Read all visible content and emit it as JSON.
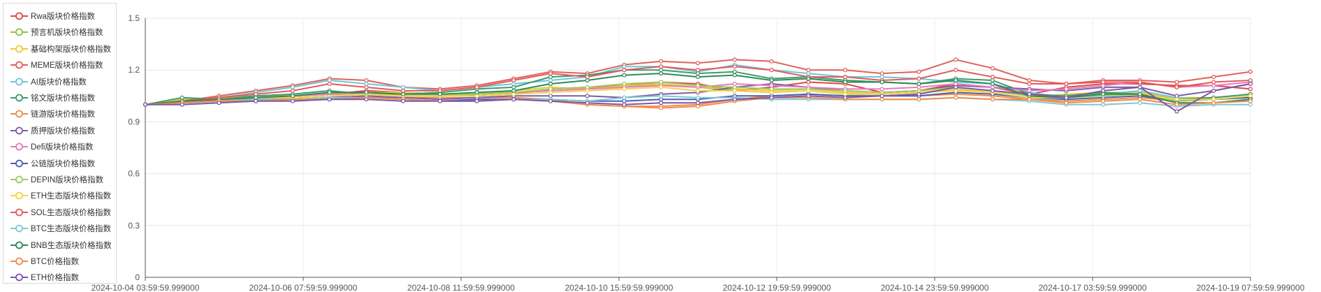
{
  "chart_data": {
    "type": "line",
    "title": "",
    "xlabel": "",
    "ylabel": "",
    "ylim": [
      0,
      1.5
    ],
    "yticks": [
      0,
      0.3,
      0.6,
      0.9,
      1.2,
      1.5
    ],
    "grid": true,
    "legend_position": "left",
    "x_tick_labels": [
      "2024-10-04 03:59:59.999000",
      "2024-10-06 07:59:59.999000",
      "2024-10-08 11:59:59.999000",
      "2024-10-10 15:59:59.999000",
      "2024-10-12 19:59:59.999000",
      "2024-10-14 23:59:59.999000",
      "2024-10-17 03:59:59.999000",
      "2024-10-19 07:59:59.999000"
    ],
    "x_range": [
      "2024-10-04 03:59:59.999000",
      "2024-10-19 07:59:59.999000"
    ],
    "series": [
      {
        "name": "Rwa版块价格指数",
        "color": "#e0474c",
        "values": [
          1.0,
          1.01,
          1.03,
          1.04,
          1.05,
          1.06,
          1.08,
          1.07,
          1.06,
          1.05,
          1.06,
          1.09,
          1.1,
          1.11,
          1.13,
          1.12,
          1.08,
          1.1,
          1.13,
          1.12,
          1.07,
          1.08,
          1.12,
          1.1,
          1.06,
          1.1,
          1.12,
          1.12,
          1.11,
          1.11,
          1.09
        ]
      },
      {
        "name": "预言机版块价格指数",
        "color": "#8bc34a",
        "values": [
          1.0,
          1.02,
          1.03,
          1.03,
          1.04,
          1.05,
          1.06,
          1.05,
          1.05,
          1.06,
          1.07,
          1.08,
          1.09,
          1.1,
          1.12,
          1.1,
          1.08,
          1.07,
          1.08,
          1.06,
          1.06,
          1.07,
          1.09,
          1.07,
          1.04,
          1.05,
          1.06,
          1.07,
          1.03,
          1.03,
          1.04
        ]
      },
      {
        "name": "基础构架版块价格指数",
        "color": "#f0c93c",
        "values": [
          1.0,
          1.03,
          1.04,
          1.05,
          1.05,
          1.06,
          1.07,
          1.07,
          1.06,
          1.06,
          1.08,
          1.1,
          1.09,
          1.11,
          1.12,
          1.1,
          1.09,
          1.08,
          1.09,
          1.07,
          1.06,
          1.07,
          1.09,
          1.07,
          1.04,
          1.06,
          1.07,
          1.07,
          1.04,
          1.04,
          1.06
        ]
      },
      {
        "name": "MEME版块价格指数",
        "color": "#e0615d",
        "values": [
          1.0,
          1.02,
          1.05,
          1.08,
          1.11,
          1.15,
          1.14,
          1.1,
          1.09,
          1.11,
          1.15,
          1.19,
          1.18,
          1.23,
          1.25,
          1.24,
          1.26,
          1.25,
          1.2,
          1.2,
          1.18,
          1.19,
          1.26,
          1.21,
          1.14,
          1.12,
          1.14,
          1.14,
          1.13,
          1.16,
          1.19
        ]
      },
      {
        "name": "AI版块价格指数",
        "color": "#6ec6d9",
        "values": [
          1.0,
          1.02,
          1.04,
          1.07,
          1.1,
          1.14,
          1.12,
          1.1,
          1.08,
          1.1,
          1.12,
          1.14,
          1.16,
          1.22,
          1.22,
          1.19,
          1.23,
          1.2,
          1.18,
          1.16,
          1.16,
          1.15,
          1.13,
          1.12,
          1.07,
          1.04,
          1.06,
          1.08,
          1.04,
          1.03,
          1.05
        ]
      },
      {
        "name": "铭文版块价格指数",
        "color": "#3a9c6e",
        "values": [
          1.0,
          1.04,
          1.03,
          1.05,
          1.06,
          1.08,
          1.06,
          1.06,
          1.07,
          1.09,
          1.1,
          1.16,
          1.17,
          1.2,
          1.2,
          1.18,
          1.19,
          1.15,
          1.16,
          1.14,
          1.13,
          1.12,
          1.15,
          1.14,
          1.06,
          1.05,
          1.07,
          1.06,
          1.03,
          1.04,
          1.06
        ]
      },
      {
        "name": "链游版块价格指数",
        "color": "#ef8c4b",
        "values": [
          1.0,
          1.02,
          1.03,
          1.03,
          1.04,
          1.05,
          1.04,
          1.04,
          1.04,
          1.04,
          1.04,
          1.03,
          1.0,
          0.99,
          0.99,
          1.0,
          1.03,
          1.05,
          1.06,
          1.05,
          1.05,
          1.05,
          1.06,
          1.05,
          1.03,
          1.02,
          1.03,
          1.04,
          1.02,
          1.03,
          1.05
        ]
      },
      {
        "name": "质押版块价格指数",
        "color": "#7b5ea7",
        "values": [
          1.0,
          1.01,
          1.02,
          1.03,
          1.03,
          1.04,
          1.05,
          1.04,
          1.03,
          1.04,
          1.05,
          1.05,
          1.05,
          1.04,
          1.06,
          1.07,
          1.1,
          1.12,
          1.1,
          1.08,
          1.07,
          1.08,
          1.11,
          1.1,
          1.09,
          1.08,
          1.1,
          1.1,
          1.05,
          1.08,
          1.12
        ]
      },
      {
        "name": "Defi版块价格指数",
        "color": "#e87bbf",
        "values": [
          1.0,
          1.02,
          1.03,
          1.04,
          1.05,
          1.06,
          1.06,
          1.05,
          1.05,
          1.06,
          1.07,
          1.08,
          1.09,
          1.1,
          1.11,
          1.1,
          1.12,
          1.11,
          1.1,
          1.09,
          1.09,
          1.1,
          1.12,
          1.1,
          1.08,
          1.09,
          1.11,
          1.13,
          1.1,
          1.11,
          1.13
        ]
      },
      {
        "name": "公链版块价格指数",
        "color": "#4c5fb3",
        "values": [
          1.0,
          1.01,
          1.02,
          1.02,
          1.03,
          1.03,
          1.04,
          1.03,
          1.02,
          1.03,
          1.03,
          1.03,
          1.02,
          1.02,
          1.03,
          1.03,
          1.05,
          1.05,
          1.06,
          1.05,
          1.05,
          1.05,
          1.07,
          1.06,
          1.04,
          1.03,
          1.04,
          1.05,
          1.02,
          1.03,
          1.04
        ]
      },
      {
        "name": "DEPIN版块价格指数",
        "color": "#9ccc65",
        "values": [
          1.0,
          1.02,
          1.03,
          1.04,
          1.04,
          1.05,
          1.06,
          1.05,
          1.05,
          1.06,
          1.07,
          1.09,
          1.1,
          1.12,
          1.13,
          1.11,
          1.1,
          1.09,
          1.09,
          1.08,
          1.07,
          1.08,
          1.1,
          1.08,
          1.05,
          1.04,
          1.05,
          1.06,
          1.02,
          1.03,
          1.05
        ]
      },
      {
        "name": "ETH生态版块价格指数",
        "color": "#f5d24b",
        "values": [
          1.0,
          1.02,
          1.03,
          1.04,
          1.04,
          1.05,
          1.06,
          1.05,
          1.05,
          1.05,
          1.06,
          1.07,
          1.08,
          1.09,
          1.1,
          1.08,
          1.08,
          1.07,
          1.08,
          1.06,
          1.06,
          1.07,
          1.08,
          1.07,
          1.04,
          1.04,
          1.06,
          1.06,
          1.03,
          1.03,
          1.05
        ]
      },
      {
        "name": "SOL生态版块价格指数",
        "color": "#e45a5a",
        "values": [
          1.0,
          1.02,
          1.04,
          1.06,
          1.08,
          1.12,
          1.1,
          1.08,
          1.08,
          1.1,
          1.14,
          1.18,
          1.16,
          1.2,
          1.22,
          1.2,
          1.22,
          1.2,
          1.16,
          1.16,
          1.14,
          1.15,
          1.2,
          1.16,
          1.12,
          1.12,
          1.13,
          1.13,
          1.1,
          1.13,
          1.14
        ]
      },
      {
        "name": "BTC生态版块价格指数",
        "color": "#7fc8d6",
        "values": [
          1.0,
          1.01,
          1.02,
          1.03,
          1.03,
          1.04,
          1.04,
          1.03,
          1.02,
          1.02,
          1.03,
          1.03,
          1.02,
          1.04,
          1.05,
          1.04,
          1.04,
          1.03,
          1.03,
          1.03,
          1.03,
          1.03,
          1.04,
          1.03,
          1.02,
          1.0,
          1.0,
          1.01,
          0.99,
          1.0,
          1.0
        ]
      },
      {
        "name": "BNB生态版块价格指数",
        "color": "#2f8a57",
        "values": [
          1.0,
          1.02,
          1.03,
          1.04,
          1.05,
          1.07,
          1.07,
          1.06,
          1.06,
          1.07,
          1.08,
          1.12,
          1.14,
          1.17,
          1.18,
          1.16,
          1.17,
          1.14,
          1.15,
          1.13,
          1.13,
          1.12,
          1.14,
          1.12,
          1.05,
          1.04,
          1.06,
          1.06,
          1.01,
          1.01,
          1.03
        ]
      },
      {
        "name": "BTC价格指数",
        "color": "#f08c4a",
        "values": [
          1.0,
          1.01,
          1.02,
          1.02,
          1.03,
          1.03,
          1.04,
          1.03,
          1.02,
          1.02,
          1.03,
          1.02,
          1.0,
          0.99,
          0.98,
          0.99,
          1.02,
          1.04,
          1.04,
          1.03,
          1.03,
          1.03,
          1.04,
          1.03,
          1.03,
          1.01,
          1.02,
          1.03,
          1.0,
          1.01,
          1.02
        ]
      },
      {
        "name": "ETH价格指数",
        "color": "#7e57a6",
        "values": [
          1.0,
          1.0,
          1.01,
          1.02,
          1.02,
          1.03,
          1.03,
          1.02,
          1.02,
          1.02,
          1.03,
          1.02,
          1.01,
          1.0,
          1.01,
          1.01,
          1.03,
          1.04,
          1.05,
          1.04,
          1.05,
          1.06,
          1.1,
          1.08,
          1.06,
          1.04,
          1.08,
          1.1,
          0.96,
          1.08,
          1.12
        ]
      }
    ]
  }
}
